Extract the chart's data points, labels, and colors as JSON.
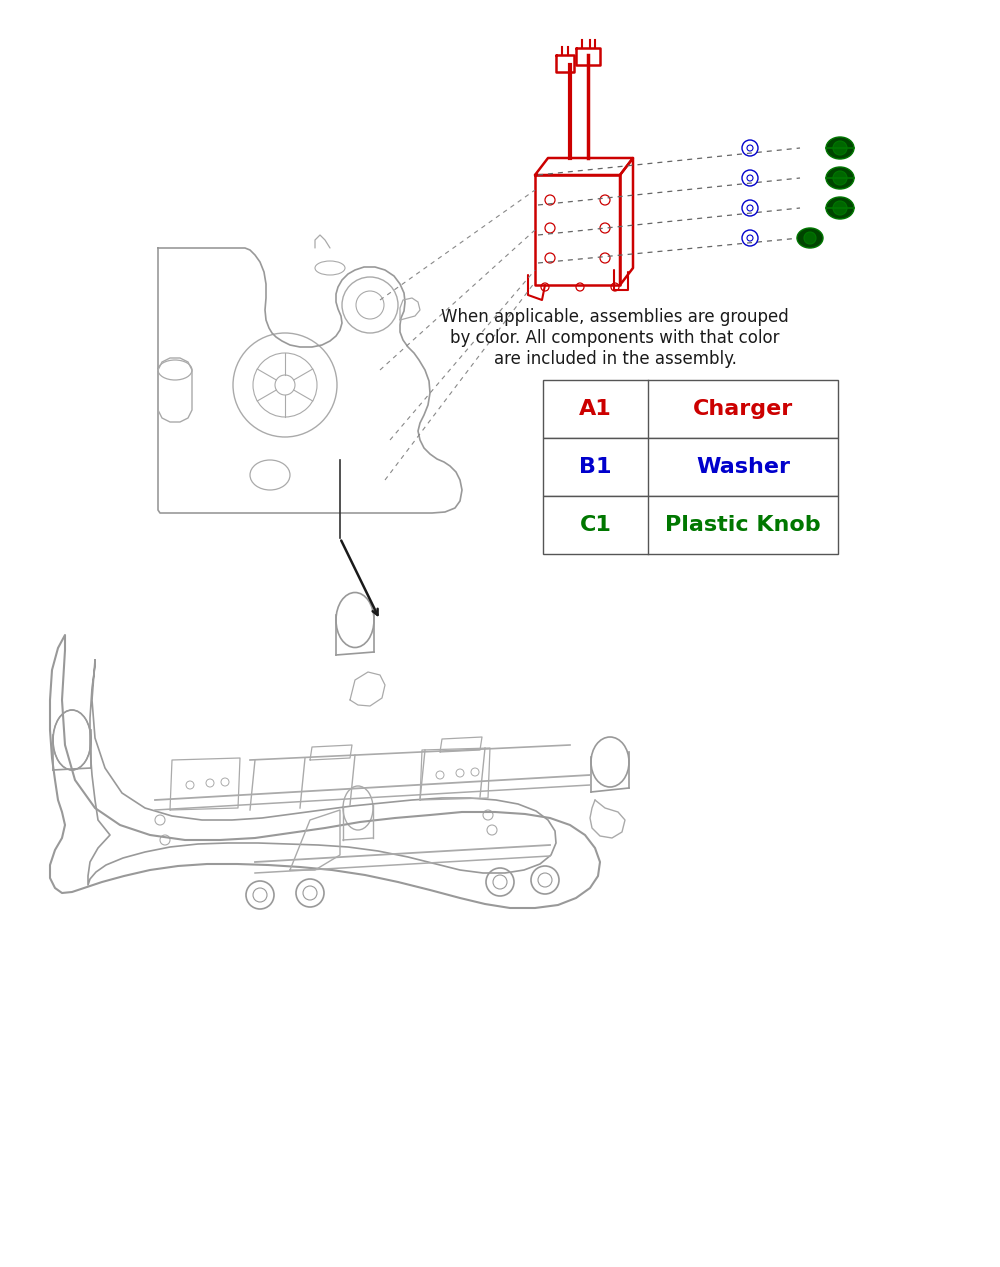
{
  "background_color": "#ffffff",
  "description_text": "When applicable, assemblies are grouped\nby color. All components with that color\nare included in the assembly.",
  "description_fontsize": 12,
  "table_data": [
    {
      "code": "A1",
      "name": "Charger",
      "color": "#cc0000"
    },
    {
      "code": "B1",
      "name": "Washer",
      "color": "#0000cc"
    },
    {
      "code": "C1",
      "name": "Plastic Knob",
      "color": "#007700"
    }
  ],
  "red_color": "#cc0000",
  "blue_color": "#0000cc",
  "green_color": "#007700",
  "gray_color": "#999999",
  "dark_gray": "#555555",
  "line_gray": "#aaaaaa"
}
